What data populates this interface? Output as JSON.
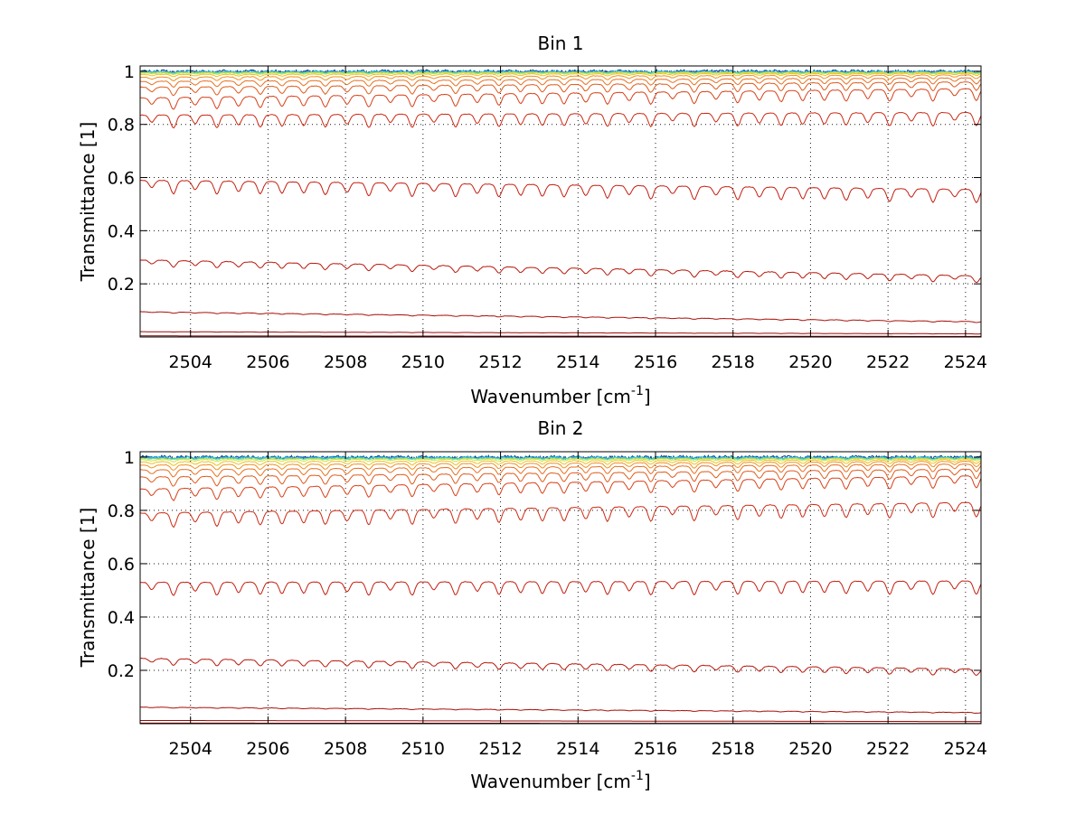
{
  "chart_data": [
    {
      "type": "line",
      "title": "Bin 1",
      "xlabel": "Wavenumber [cm",
      "xlabel_sup": "-1",
      "xlabel_end": "]",
      "ylabel": "Transmittance [1]",
      "xlim": [
        2502.7,
        2524.4
      ],
      "ylim": [
        0.0,
        1.02
      ],
      "grid": true,
      "x_ticks": [
        2504,
        2506,
        2508,
        2510,
        2512,
        2514,
        2516,
        2518,
        2520,
        2522,
        2524
      ],
      "x_tick_labels": [
        "2504",
        "2506",
        "2508",
        "2510",
        "2512",
        "2514",
        "2516",
        "2518",
        "2520",
        "2522",
        "2524"
      ],
      "y_ticks": [
        0.2,
        0.4,
        0.6,
        0.8,
        1.0
      ],
      "y_tick_labels": [
        "0.2",
        "0.4",
        "0.6",
        "0.8",
        "1"
      ],
      "series": [
        {
          "color": "#0a3a8c",
          "start": 1.0,
          "end": 1.0,
          "depth": 0.004,
          "noise": 0.006
        },
        {
          "color": "#1a7fd6",
          "start": 0.999,
          "end": 0.999,
          "depth": 0.004,
          "noise": 0.004
        },
        {
          "color": "#2fd0d8",
          "start": 0.998,
          "end": 0.998,
          "depth": 0.004,
          "noise": 0.003
        },
        {
          "color": "#7fe07a",
          "start": 0.996,
          "end": 0.996,
          "depth": 0.004,
          "noise": 0.002
        },
        {
          "color": "#d8e040",
          "start": 0.993,
          "end": 0.995,
          "depth": 0.005,
          "noise": 0.001
        },
        {
          "color": "#f0c020",
          "start": 0.988,
          "end": 0.992,
          "depth": 0.008,
          "noise": 0.001
        },
        {
          "color": "#f09020",
          "start": 0.978,
          "end": 0.986,
          "depth": 0.014,
          "noise": 0.001
        },
        {
          "color": "#e87020",
          "start": 0.962,
          "end": 0.975,
          "depth": 0.022,
          "noise": 0.001
        },
        {
          "color": "#e05a1a",
          "start": 0.94,
          "end": 0.96,
          "depth": 0.032,
          "noise": 0.001
        },
        {
          "color": "#d84018",
          "start": 0.9,
          "end": 0.935,
          "depth": 0.045,
          "noise": 0.001
        },
        {
          "color": "#cc2a14",
          "start": 0.835,
          "end": 0.845,
          "depth": 0.05,
          "noise": 0.001
        },
        {
          "color": "#c41e10",
          "start": 0.59,
          "end": 0.555,
          "depth": 0.05,
          "noise": 0.001
        },
        {
          "color": "#b8180c",
          "start": 0.29,
          "end": 0.23,
          "depth": 0.025,
          "noise": 0.001
        },
        {
          "color": "#a8100a",
          "start": 0.095,
          "end": 0.058,
          "depth": 0.004,
          "noise": 0.0005
        },
        {
          "color": "#980a08",
          "start": 0.02,
          "end": 0.012,
          "depth": 0.001,
          "noise": 0.0
        },
        {
          "color": "#800404",
          "start": 0.004,
          "end": 0.002,
          "depth": 0.0,
          "noise": 0.0
        }
      ]
    },
    {
      "type": "line",
      "title": "Bin 2",
      "xlabel": "Wavenumber [cm",
      "xlabel_sup": "-1",
      "xlabel_end": "]",
      "ylabel": "Transmittance [1]",
      "xlim": [
        2502.7,
        2524.4
      ],
      "ylim": [
        0.0,
        1.02
      ],
      "grid": true,
      "x_ticks": [
        2504,
        2506,
        2508,
        2510,
        2512,
        2514,
        2516,
        2518,
        2520,
        2522,
        2524
      ],
      "x_tick_labels": [
        "2504",
        "2506",
        "2508",
        "2510",
        "2512",
        "2514",
        "2516",
        "2518",
        "2520",
        "2522",
        "2524"
      ],
      "y_ticks": [
        0.2,
        0.4,
        0.6,
        0.8,
        1.0
      ],
      "y_tick_labels": [
        "0.2",
        "0.4",
        "0.6",
        "0.8",
        "1"
      ],
      "series": [
        {
          "color": "#0a3a8c",
          "start": 1.0,
          "end": 1.0,
          "depth": 0.004,
          "noise": 0.006
        },
        {
          "color": "#1a7fd6",
          "start": 0.999,
          "end": 0.999,
          "depth": 0.004,
          "noise": 0.004
        },
        {
          "color": "#2fd0d8",
          "start": 0.998,
          "end": 0.998,
          "depth": 0.004,
          "noise": 0.003
        },
        {
          "color": "#7fe07a",
          "start": 0.995,
          "end": 0.996,
          "depth": 0.005,
          "noise": 0.002
        },
        {
          "color": "#d8e040",
          "start": 0.99,
          "end": 0.994,
          "depth": 0.008,
          "noise": 0.001
        },
        {
          "color": "#f0c020",
          "start": 0.982,
          "end": 0.99,
          "depth": 0.014,
          "noise": 0.001
        },
        {
          "color": "#f09020",
          "start": 0.97,
          "end": 0.984,
          "depth": 0.02,
          "noise": 0.001
        },
        {
          "color": "#e87020",
          "start": 0.952,
          "end": 0.974,
          "depth": 0.028,
          "noise": 0.001
        },
        {
          "color": "#e05a1a",
          "start": 0.925,
          "end": 0.955,
          "depth": 0.036,
          "noise": 0.001
        },
        {
          "color": "#d84018",
          "start": 0.88,
          "end": 0.93,
          "depth": 0.045,
          "noise": 0.001
        },
        {
          "color": "#cc2a14",
          "start": 0.79,
          "end": 0.83,
          "depth": 0.055,
          "noise": 0.001
        },
        {
          "color": "#c41e10",
          "start": 0.53,
          "end": 0.535,
          "depth": 0.05,
          "noise": 0.001
        },
        {
          "color": "#b8180c",
          "start": 0.245,
          "end": 0.205,
          "depth": 0.025,
          "noise": 0.001
        },
        {
          "color": "#a8100a",
          "start": 0.062,
          "end": 0.042,
          "depth": 0.003,
          "noise": 0.0005
        },
        {
          "color": "#980a08",
          "start": 0.012,
          "end": 0.008,
          "depth": 0.0,
          "noise": 0.0
        },
        {
          "color": "#800404",
          "start": 0.002,
          "end": 0.001,
          "depth": 0.0,
          "noise": 0.0
        }
      ]
    }
  ]
}
